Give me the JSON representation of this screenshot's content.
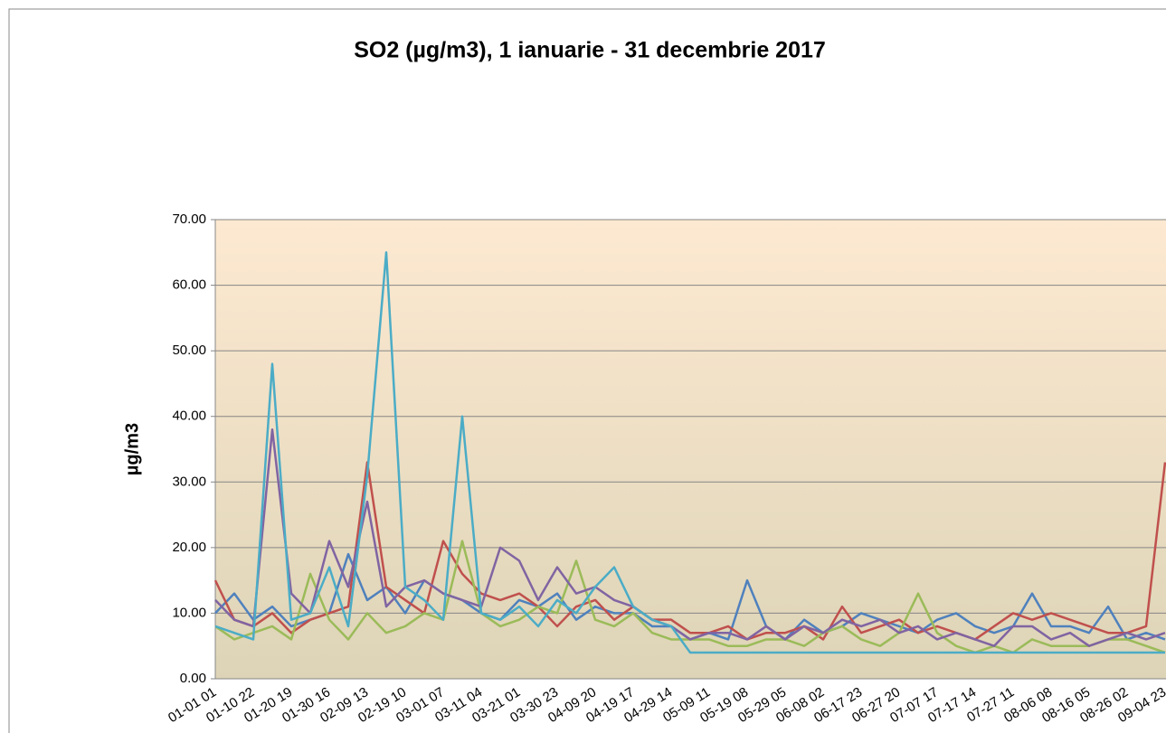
{
  "chart_data": {
    "type": "line",
    "title": "SO2 (µg/m3), 1 ianuarie - 31 decembrie 2017",
    "y_label": "µg/m3",
    "ylim": [
      0,
      70
    ],
    "yticks": [
      {
        "value": 0,
        "label": "0.00"
      },
      {
        "value": 10,
        "label": "10.00"
      },
      {
        "value": 20,
        "label": "20.00"
      },
      {
        "value": 30,
        "label": "30.00"
      },
      {
        "value": 40,
        "label": "40.00"
      },
      {
        "value": 50,
        "label": "50.00"
      },
      {
        "value": 60,
        "label": "60.00"
      },
      {
        "value": 70,
        "label": "70.00"
      }
    ],
    "grid": true,
    "categories": [
      "01-01 01",
      null,
      "01-10 22",
      null,
      "01-20 19",
      null,
      "01-30 16",
      null,
      "02-09 13",
      null,
      "02-19 10",
      null,
      "03-01 07",
      null,
      "03-11 04",
      null,
      "03-21 01",
      null,
      "03-30 23",
      null,
      "04-09 20",
      null,
      "04-19 17",
      null,
      "04-29 14",
      null,
      "05-09 11",
      null,
      "05-19 08",
      null,
      "05-29 05",
      null,
      "06-08 02",
      null,
      "06-17 23",
      null,
      "06-27 20",
      null,
      "07-07 17",
      null,
      "07-17 14",
      null,
      "07-27 11",
      null,
      "08-06 08",
      null,
      "08-16 05",
      null,
      "08-26 02",
      null,
      "09-04 23"
    ],
    "series": [
      {
        "color": "#4f81bd",
        "values": [
          10,
          13,
          9,
          11,
          8,
          9,
          10,
          19,
          12,
          14,
          10,
          15,
          13,
          12,
          10,
          9,
          12,
          11,
          13,
          9,
          11,
          10,
          10,
          8,
          8,
          6,
          7,
          6,
          15,
          8,
          6,
          9,
          7,
          8,
          10,
          9,
          8,
          7,
          9,
          10,
          8,
          7,
          8,
          13,
          8,
          8,
          7,
          11,
          6,
          7,
          6
        ]
      },
      {
        "color": "#c0504d",
        "values": [
          15,
          9,
          8,
          10,
          7,
          9,
          10,
          11,
          33,
          14,
          12,
          10,
          21,
          16,
          13,
          12,
          13,
          11,
          8,
          11,
          12,
          9,
          11,
          9,
          9,
          7,
          7,
          8,
          6,
          7,
          7,
          8,
          6,
          11,
          7,
          8,
          9,
          7,
          8,
          7,
          6,
          8,
          10,
          9,
          10,
          9,
          8,
          7,
          7,
          8,
          33
        ]
      },
      {
        "color": "#9bbb59",
        "values": [
          8,
          6,
          7,
          8,
          6,
          16,
          9,
          6,
          10,
          7,
          8,
          10,
          9,
          21,
          10,
          8,
          9,
          11,
          10,
          18,
          9,
          8,
          10,
          7,
          6,
          6,
          6,
          5,
          5,
          6,
          6,
          5,
          7,
          8,
          6,
          5,
          7,
          13,
          7,
          5,
          4,
          5,
          4,
          6,
          5,
          5,
          5,
          6,
          6,
          5,
          4
        ]
      },
      {
        "color": "#8064a2",
        "values": [
          12,
          9,
          8,
          38,
          13,
          10,
          21,
          14,
          27,
          11,
          14,
          15,
          13,
          12,
          11,
          20,
          18,
          12,
          17,
          13,
          14,
          12,
          11,
          9,
          8,
          6,
          7,
          7,
          6,
          8,
          6,
          8,
          7,
          9,
          8,
          9,
          7,
          8,
          6,
          7,
          6,
          5,
          8,
          8,
          6,
          7,
          5,
          6,
          7,
          6,
          7
        ]
      },
      {
        "color": "#4bacc6",
        "values": [
          8,
          7,
          6,
          48,
          9,
          10,
          17,
          8,
          31,
          65,
          14,
          12,
          9,
          40,
          10,
          9,
          11,
          8,
          12,
          10,
          14,
          17,
          11,
          9,
          8,
          4,
          4,
          4,
          4,
          4,
          4,
          4,
          4,
          4,
          4,
          4,
          4,
          4,
          4,
          4,
          4,
          4,
          4,
          4,
          4,
          4,
          4,
          4,
          4,
          4,
          4
        ]
      }
    ]
  }
}
